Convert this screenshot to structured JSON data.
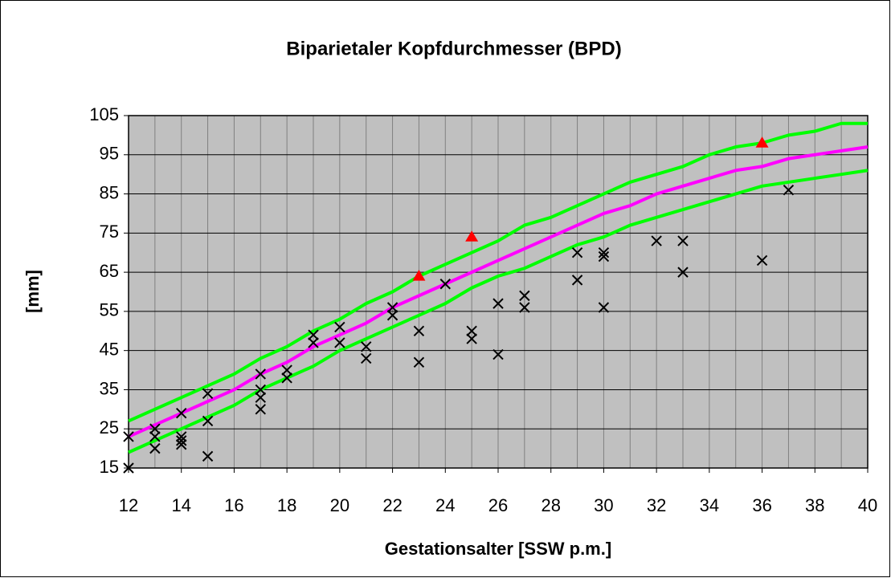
{
  "chart_data": {
    "type": "line",
    "title": "Biparietaler Kopfdurchmesser (BPD)",
    "xlabel": "Gestationsalter [SSW p.m.]",
    "ylabel": "[mm]",
    "xlim": [
      12,
      40
    ],
    "xticks": [
      12,
      14,
      16,
      18,
      20,
      22,
      24,
      26,
      28,
      30,
      32,
      34,
      36,
      38,
      40
    ],
    "ylim": [
      15,
      105
    ],
    "yticks": [
      15,
      25,
      35,
      45,
      55,
      65,
      75,
      85,
      95,
      105
    ],
    "x_grid_step": 1,
    "grid": true,
    "background": "#c0c0c0",
    "series": [
      {
        "color": "#00ff00",
        "marker": "none",
        "x": [
          12,
          13,
          14,
          15,
          16,
          17,
          18,
          19,
          20,
          21,
          22,
          23,
          24,
          25,
          26,
          27,
          28,
          29,
          30,
          31,
          32,
          33,
          34,
          35,
          36,
          37,
          38,
          39,
          40
        ],
        "values": [
          27,
          30,
          33,
          36,
          39,
          43,
          46,
          50,
          53,
          57,
          60,
          64,
          67,
          70,
          73,
          77,
          79,
          82,
          85,
          88,
          90,
          92,
          95,
          97,
          98,
          100,
          101,
          103,
          103
        ]
      },
      {
        "color": "#ff00ff",
        "marker": "none",
        "x": [
          12,
          13,
          14,
          15,
          16,
          17,
          18,
          19,
          20,
          21,
          22,
          23,
          24,
          25,
          26,
          27,
          28,
          29,
          30,
          31,
          32,
          33,
          34,
          35,
          36,
          37,
          38,
          39,
          40
        ],
        "values": [
          23,
          26,
          29,
          32,
          35,
          39,
          42,
          46,
          49,
          52,
          56,
          59,
          62,
          65,
          68,
          71,
          74,
          77,
          80,
          82,
          85,
          87,
          89,
          91,
          92,
          94,
          95,
          96,
          97
        ]
      },
      {
        "color": "#00ff00",
        "marker": "none",
        "x": [
          12,
          13,
          14,
          15,
          16,
          17,
          18,
          19,
          20,
          21,
          22,
          23,
          24,
          25,
          26,
          27,
          28,
          29,
          30,
          31,
          32,
          33,
          34,
          35,
          36,
          37,
          38,
          39,
          40
        ],
        "values": [
          19,
          22,
          25,
          28,
          31,
          35,
          38,
          41,
          45,
          48,
          51,
          54,
          57,
          61,
          64,
          66,
          69,
          72,
          74,
          77,
          79,
          81,
          83,
          85,
          87,
          88,
          89,
          90,
          91
        ]
      },
      {
        "color": "#000000",
        "marker": "x",
        "x": [
          12,
          12,
          13,
          13,
          13,
          14,
          14,
          14,
          14,
          15,
          15,
          15,
          17,
          17,
          17,
          17,
          18,
          18,
          19,
          19,
          20,
          20,
          21,
          21,
          22,
          22,
          23,
          23,
          24,
          25,
          25,
          26,
          26,
          27,
          27,
          29,
          29,
          30,
          30,
          30,
          32,
          33,
          33,
          36,
          37
        ],
        "values": [
          23,
          15,
          25,
          23,
          20,
          29,
          23,
          22,
          21,
          34,
          27,
          18,
          39,
          35,
          33,
          30,
          40,
          38,
          49,
          47,
          51,
          47,
          46,
          43,
          56,
          54,
          50,
          42,
          62,
          50,
          48,
          57,
          44,
          59,
          56,
          70,
          63,
          70,
          69,
          56,
          73,
          73,
          65,
          68,
          86
        ]
      },
      {
        "color": "#ff0000",
        "marker": "triangle",
        "x": [
          23,
          25,
          36
        ],
        "values": [
          64,
          74,
          98
        ]
      }
    ]
  }
}
